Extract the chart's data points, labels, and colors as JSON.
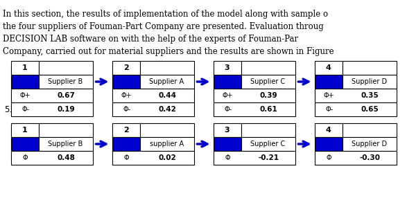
{
  "text_lines": [
    "In this section, the results of implementation of the model along with sample o",
    "the four suppliers of Fouman-Part Company are presented. Evaluation throug",
    "DECISION LAB software on with the help of the experts of Fouman-Par",
    "Company, carried out for material suppliers and the results are shown in Figure"
  ],
  "row1": {
    "boxes": [
      {
        "rank": "1",
        "name": "Supplier B",
        "phi_plus": "0.67",
        "phi_minus": "0.19"
      },
      {
        "rank": "2",
        "name": "Supplier A",
        "phi_plus": "0.44",
        "phi_minus": "0.42"
      },
      {
        "rank": "3",
        "name": "Supplier C",
        "phi_plus": "0.39",
        "phi_minus": "0.61"
      },
      {
        "rank": "4",
        "name": "Supplier D",
        "phi_plus": "0.35",
        "phi_minus": "0.65"
      }
    ]
  },
  "row2": {
    "boxes": [
      {
        "rank": "1",
        "name": "Supplier B",
        "phi": "0.48"
      },
      {
        "rank": "2",
        "name": "supplier A",
        "phi": "0.02"
      },
      {
        "rank": "3",
        "name": "Supplier C",
        "phi": "-0.21"
      },
      {
        "rank": "4",
        "name": "Supplier D",
        "phi": "-0.30"
      }
    ]
  },
  "blue_fill": "#0000CD",
  "white_fill": "#FFFFFF",
  "border_color": "#000000",
  "arrow_color": "#0000CD",
  "fig_label": "5."
}
